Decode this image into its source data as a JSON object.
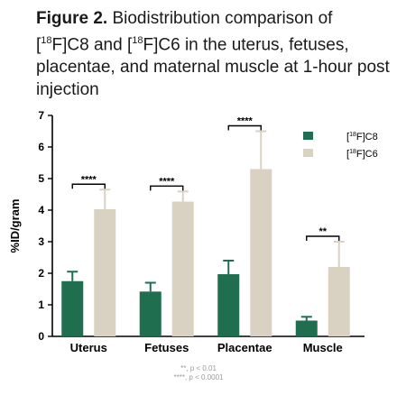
{
  "caption": {
    "label": "Figure 2.",
    "text_a": " Biodistribution comparison of [",
    "sup_a": "18",
    "text_b": "F]C8 and [",
    "sup_b": "18",
    "text_c": "F]C6 in the uterus, fetuses, placentae, and maternal muscle at 1-hour post injection"
  },
  "chart_data": {
    "type": "bar",
    "ylabel": "%ID/gram",
    "ylim": [
      0,
      7
    ],
    "yticks": [
      0,
      1,
      2,
      3,
      4,
      5,
      6,
      7
    ],
    "categories": [
      "Uterus",
      "Fetuses",
      "Placentae",
      "Muscle"
    ],
    "series": [
      {
        "name_pre": "[",
        "name_sup": "18",
        "name_post": "F]C8",
        "color": "#1e6e4f",
        "values": [
          1.75,
          1.42,
          1.97,
          0.5
        ],
        "errors": [
          0.3,
          0.28,
          0.43,
          0.12
        ]
      },
      {
        "name_pre": "[",
        "name_sup": "18",
        "name_post": "F]C6",
        "color": "#d9d2c2",
        "values": [
          4.03,
          4.27,
          5.3,
          2.2
        ],
        "errors": [
          0.62,
          0.32,
          1.2,
          0.8
        ]
      }
    ],
    "significance": [
      "****",
      "****",
      "****",
      "**"
    ],
    "legend_position": "top-right",
    "grid": false
  },
  "footnotes": [
    "**, p < 0.01",
    "****, p < 0.0001"
  ]
}
